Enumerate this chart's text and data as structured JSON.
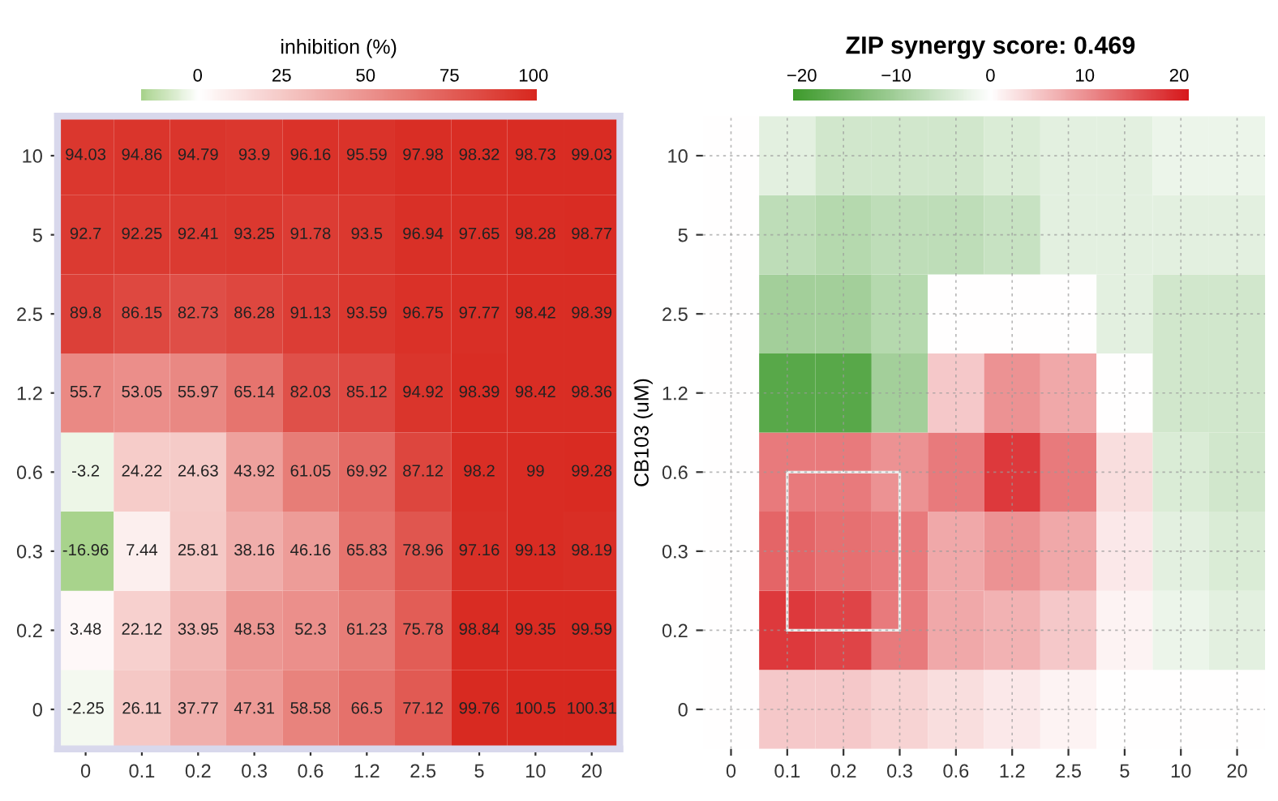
{
  "chart_data": [
    {
      "type": "heatmap",
      "clabel": "inhibition (%)",
      "categories": [
        "0",
        "0.1",
        "0.2",
        "0.3",
        "0.6",
        "1.2",
        "2.5",
        "5",
        "10",
        "20"
      ],
      "y_categories": [
        "10",
        "5",
        "2.5",
        "1.2",
        "0.6",
        "0.3",
        "0.2",
        "0"
      ],
      "cells": [
        [
          94.03,
          94.86,
          94.79,
          93.9,
          96.16,
          95.59,
          97.98,
          98.32,
          98.73,
          99.03
        ],
        [
          92.7,
          92.25,
          92.41,
          93.25,
          91.78,
          93.5,
          96.94,
          97.65,
          98.28,
          98.77
        ],
        [
          89.8,
          86.15,
          82.73,
          86.28,
          91.13,
          93.59,
          96.75,
          97.77,
          98.42,
          98.39
        ],
        [
          55.7,
          53.05,
          55.97,
          65.14,
          82.03,
          85.12,
          94.92,
          98.39,
          98.42,
          98.36
        ],
        [
          -3.2,
          24.22,
          24.63,
          43.92,
          61.05,
          69.92,
          87.12,
          98.2,
          99,
          99.28
        ],
        [
          -16.96,
          7.44,
          25.81,
          38.16,
          46.16,
          65.83,
          78.96,
          97.16,
          99.13,
          98.19
        ],
        [
          3.48,
          22.12,
          33.95,
          48.53,
          52.3,
          61.23,
          75.78,
          98.84,
          99.35,
          99.59
        ],
        [
          -2.25,
          26.11,
          37.77,
          47.31,
          58.58,
          66.5,
          77.12,
          99.76,
          100.5,
          100.31
        ]
      ],
      "clim": [
        -17,
        101
      ],
      "cticks": [
        0,
        25,
        50,
        75,
        100
      ],
      "data_labels": true,
      "grid": false
    },
    {
      "type": "heatmap",
      "title": "ZIP synergy score: 0.469",
      "ylabel": "CB103 (uM)",
      "categories": [
        "0",
        "0.1",
        "0.2",
        "0.3",
        "0.6",
        "1.2",
        "2.5",
        "5",
        "10",
        "20"
      ],
      "y_categories": [
        "10",
        "5",
        "2.5",
        "1.2",
        "0.6",
        "0.3",
        "0.2",
        "0"
      ],
      "cells": [
        [
          0,
          -3,
          -5,
          -5,
          -5,
          -4,
          -3,
          -3,
          -2,
          -2
        ],
        [
          0,
          -7,
          -8,
          -7,
          -7,
          -6,
          -3,
          -3,
          -3,
          -3
        ],
        [
          0,
          -10,
          -10,
          -8,
          0,
          0,
          0,
          -3,
          -5,
          -5
        ],
        [
          0,
          -18,
          -18,
          -10,
          5,
          10,
          8,
          0,
          -5,
          -5
        ],
        [
          0,
          12,
          12,
          10,
          12,
          18,
          12,
          3,
          -4,
          -5
        ],
        [
          0,
          14,
          13,
          12,
          8,
          10,
          8,
          2,
          -3,
          -4
        ],
        [
          0,
          18,
          17,
          12,
          8,
          7,
          5,
          1,
          -2,
          -3
        ],
        [
          0,
          5,
          5,
          4,
          3,
          2,
          1,
          0,
          0,
          0
        ]
      ],
      "clim": [
        -21,
        21
      ],
      "cticks": [
        -20,
        -10,
        0,
        10,
        20
      ],
      "grid": true
    }
  ]
}
